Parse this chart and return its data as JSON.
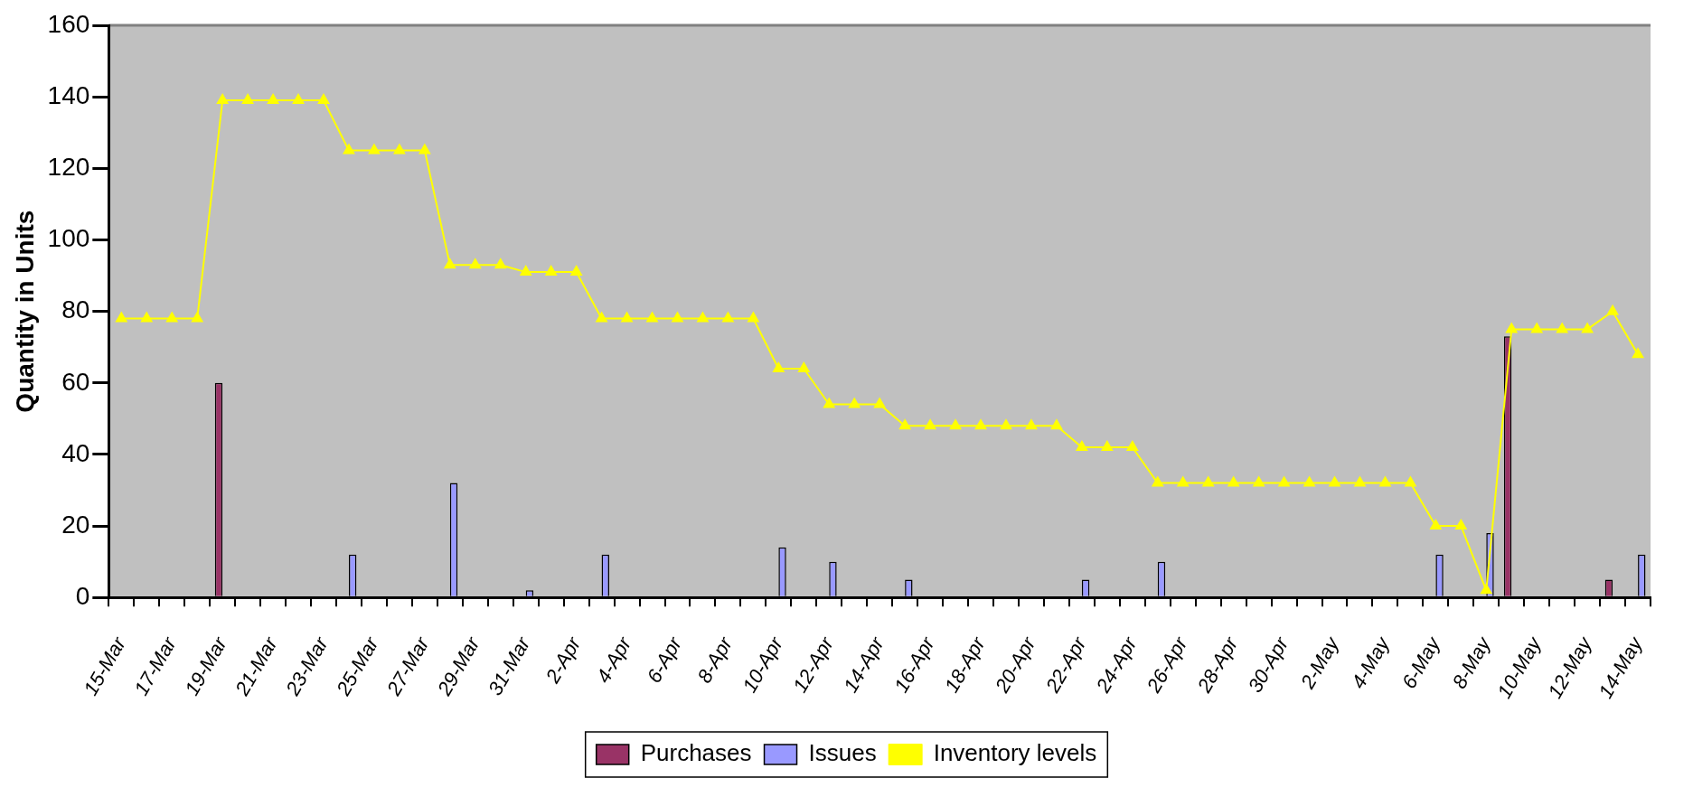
{
  "chart_data": {
    "type": "bar",
    "ylabel": "Quantity in Units",
    "categories": [
      "15-Mar",
      null,
      "17-Mar",
      null,
      "19-Mar",
      null,
      "21-Mar",
      null,
      "23-Mar",
      null,
      "25-Mar",
      null,
      "27-Mar",
      null,
      "29-Mar",
      null,
      "31-Mar",
      null,
      "2-Apr",
      null,
      "4-Apr",
      null,
      "6-Apr",
      null,
      "8-Apr",
      null,
      "10-Apr",
      null,
      "12-Apr",
      null,
      "14-Apr",
      null,
      "16-Apr",
      null,
      "18-Apr",
      null,
      "20-Apr",
      null,
      "22-Apr",
      null,
      "24-Apr",
      null,
      "26-Apr",
      null,
      "28-Apr",
      null,
      "30-Apr",
      null,
      "2-May",
      null,
      "4-May",
      null,
      "6-May",
      null,
      "8-May",
      null,
      "10-May",
      null,
      "12-May",
      null,
      "14-May"
    ],
    "series": [
      {
        "name": "Purchases",
        "color": "#993366",
        "values": [
          null,
          null,
          null,
          null,
          60,
          null,
          null,
          null,
          null,
          null,
          null,
          null,
          null,
          null,
          null,
          null,
          null,
          null,
          null,
          null,
          null,
          null,
          null,
          null,
          null,
          null,
          null,
          null,
          null,
          null,
          null,
          null,
          null,
          null,
          null,
          null,
          null,
          null,
          null,
          null,
          null,
          null,
          null,
          null,
          null,
          null,
          null,
          null,
          null,
          null,
          null,
          null,
          null,
          null,
          null,
          73,
          null,
          null,
          null,
          5,
          null
        ]
      },
      {
        "name": "Issues",
        "color": "#9999ff",
        "values": [
          null,
          null,
          null,
          null,
          null,
          null,
          null,
          null,
          null,
          12,
          null,
          null,
          null,
          32,
          null,
          null,
          2,
          null,
          null,
          12,
          null,
          null,
          null,
          null,
          null,
          null,
          14,
          null,
          10,
          null,
          null,
          5,
          null,
          null,
          null,
          null,
          null,
          null,
          5,
          null,
          null,
          10,
          null,
          null,
          null,
          null,
          null,
          null,
          null,
          null,
          null,
          null,
          12,
          null,
          18,
          null,
          null,
          null,
          null,
          null,
          12
        ]
      },
      {
        "name": "Inventory levels",
        "type": "line",
        "color": "#ffff00",
        "marker": "triangle",
        "line_style": "solid",
        "values": [
          78,
          78,
          78,
          78,
          139,
          139,
          139,
          139,
          139,
          125,
          125,
          125,
          125,
          93,
          93,
          93,
          91,
          91,
          91,
          78,
          78,
          78,
          78,
          78,
          78,
          78,
          64,
          64,
          54,
          54,
          54,
          48,
          48,
          48,
          48,
          48,
          48,
          48,
          42,
          42,
          42,
          32,
          32,
          32,
          32,
          32,
          32,
          32,
          32,
          32,
          32,
          32,
          20,
          20,
          2,
          75,
          75,
          75,
          75,
          80,
          68
        ]
      }
    ],
    "ylim": [
      0,
      160
    ],
    "yticks": [
      0,
      20,
      40,
      60,
      80,
      100,
      120,
      140,
      160
    ],
    "grid": false,
    "legend": "bottom"
  }
}
